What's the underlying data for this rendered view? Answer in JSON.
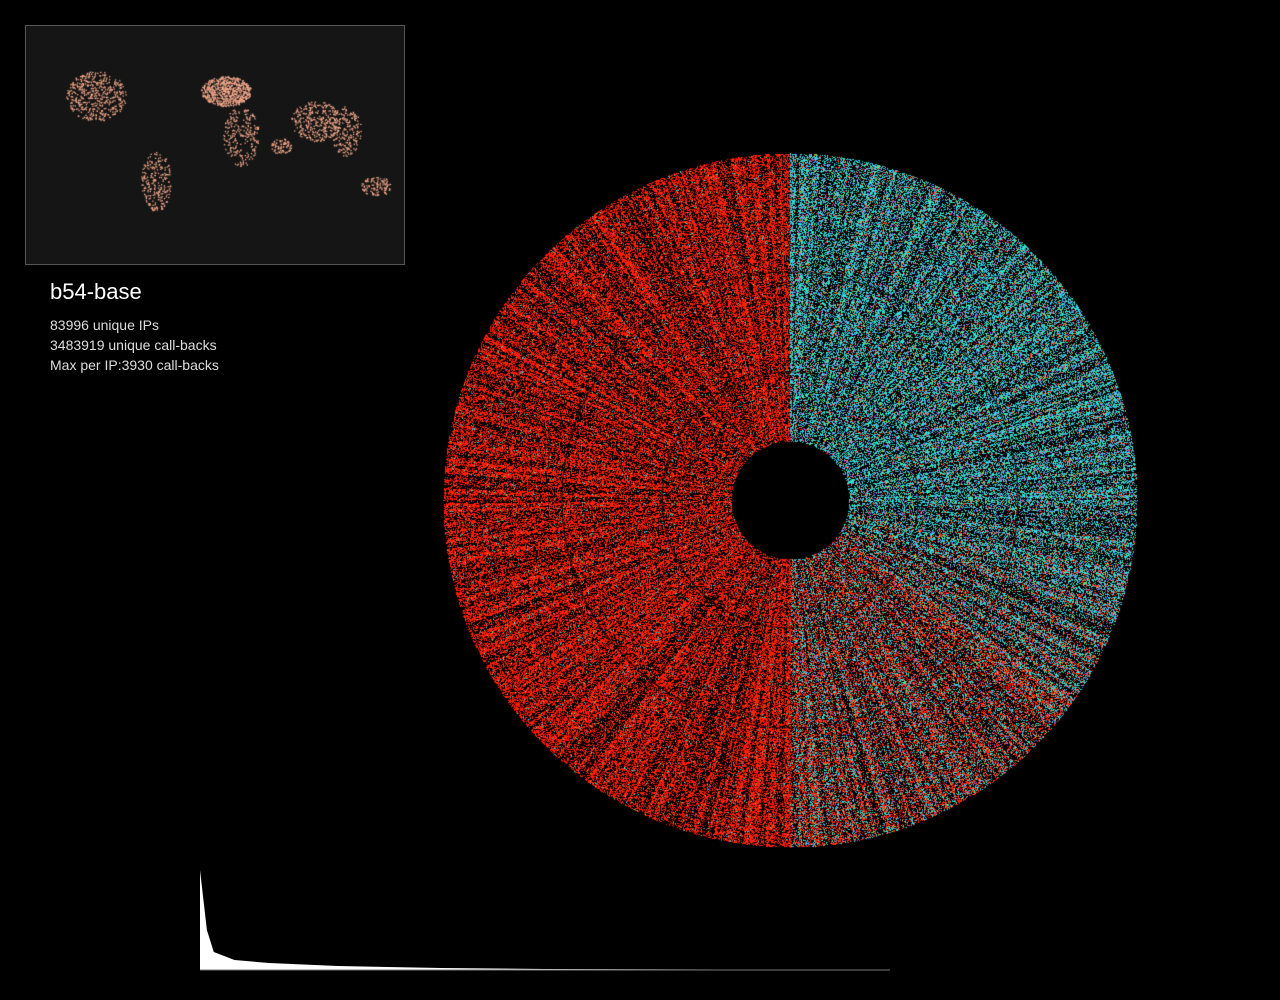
{
  "title": "b54-base",
  "stats": {
    "unique_ips": "83996  unique IPs",
    "unique_callbacks": "3483919  unique call-backs",
    "max_per_ip": "Max per IP:3930 call-backs"
  },
  "colors": {
    "background": "#000000",
    "map_background": "#151515",
    "map_dots": "#f4a98c",
    "radial_left": "#ff1a00",
    "radial_right": "#2ee6d6",
    "histogram": "#ffffff"
  },
  "chart_data": [
    {
      "type": "heatmap",
      "description_kind": "radial",
      "rings": 3
    },
    {
      "type": "area",
      "x": [
        0,
        0.01,
        0.02,
        0.05,
        0.1,
        0.2,
        0.35,
        0.5,
        0.75,
        1.0
      ],
      "values": [
        1.0,
        0.4,
        0.18,
        0.1,
        0.07,
        0.04,
        0.02,
        0.01,
        0.005,
        0.003
      ],
      "ylim": [
        0,
        1
      ]
    }
  ]
}
